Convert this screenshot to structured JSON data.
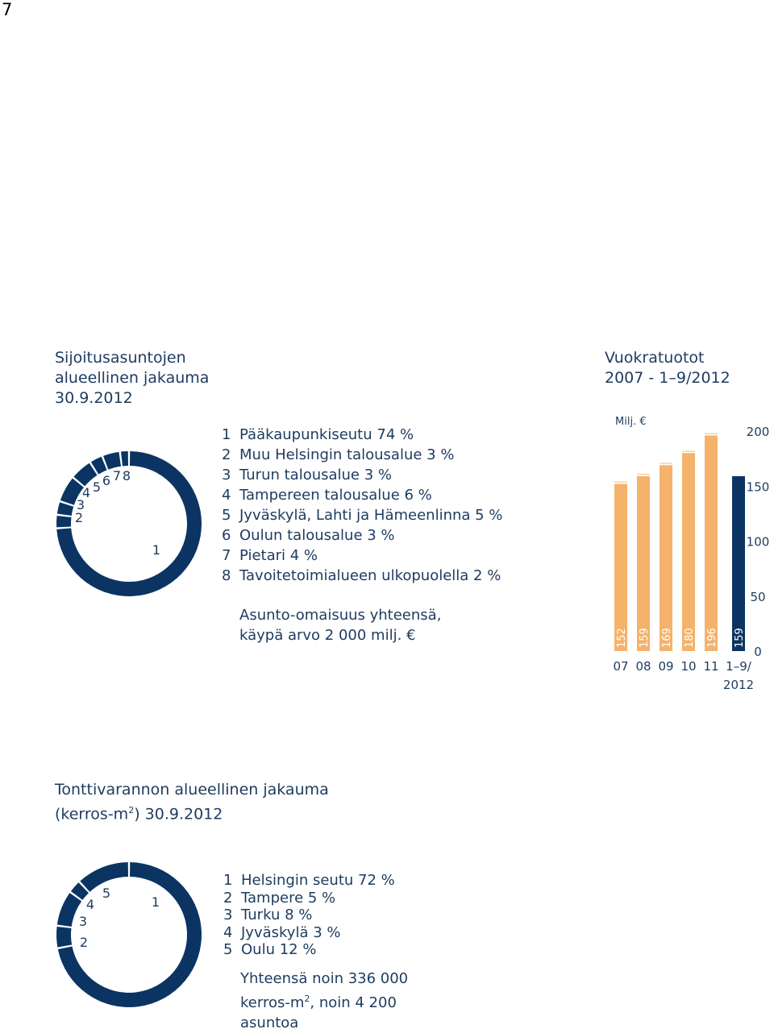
{
  "page_number": "7",
  "donut1": {
    "title_lines": [
      "Sijoitusasuntojen",
      "alueellinen jakauma",
      "30.9.2012"
    ],
    "legend": [
      {
        "num": "1",
        "text": "Pääkaupunkiseutu 74 %"
      },
      {
        "num": "2",
        "text": "Muu Helsingin talousalue 3 %"
      },
      {
        "num": "3",
        "text": "Turun talousalue 3 %"
      },
      {
        "num": "4",
        "text": "Tampereen talousalue 6 %"
      },
      {
        "num": "5",
        "text": "Jyväskylä, Lahti ja Hämeenlinna 5 %"
      },
      {
        "num": "6",
        "text": "Oulun talousalue 3 %"
      },
      {
        "num": "7",
        "text": "Pietari 4 %"
      },
      {
        "num": "8",
        "text": "Tavoitetoimialueen ulkopuolella 2 %"
      }
    ],
    "note_lines": [
      "Asunto-omaisuus yhteensä,",
      "käypä arvo 2 000 milj. €"
    ]
  },
  "bar": {
    "title_lines": [
      "Vuokratuotot",
      "2007 - 1–9/2012"
    ]
  },
  "donut2": {
    "title_line1": "Tonttivarannon alueellinen jakauma",
    "title_line2_pre": "(kerros-m",
    "title_line2_sup": "2",
    "title_line2_post": ") 30.9.2012",
    "legend": [
      {
        "num": "1",
        "text": "Helsingin seutu 72 %"
      },
      {
        "num": "2",
        "text": "Tampere 5 %"
      },
      {
        "num": "3",
        "text": "Turku 8 %"
      },
      {
        "num": "4",
        "text": "Jyväskylä 3 %"
      },
      {
        "num": "5",
        "text": "Oulu 12 %"
      }
    ],
    "note_line1": "Yhteensä noin 336 000",
    "note_line2_pre": "kerros-m",
    "note_line2_sup": "2",
    "note_line2_post": ", noin 4 200",
    "note_line3": "asuntoa"
  },
  "colors": {
    "navy": "#0b3463",
    "orange": "#f5b26b",
    "text": "#1d3b5f"
  },
  "chart_data": [
    {
      "type": "pie",
      "labels": [
        "1",
        "2",
        "3",
        "4",
        "5",
        "6",
        "7",
        "8"
      ],
      "values": [
        74,
        3,
        3,
        6,
        5,
        3,
        4,
        2
      ]
    },
    {
      "type": "bar",
      "categories": [
        "07",
        "08",
        "09",
        "10",
        "11",
        "1–9/\n2012"
      ],
      "values": [
        152,
        159,
        169,
        180,
        196,
        159
      ],
      "value_labels": [
        "152",
        "159",
        "169",
        "180",
        "196",
        "159"
      ],
      "ylabel": "Milj. €",
      "ylim": [
        0,
        200
      ],
      "yticks": [
        "0",
        "50",
        "100",
        "150",
        "200"
      ],
      "highlight_last": true
    },
    {
      "type": "pie",
      "labels": [
        "1",
        "2",
        "3",
        "4",
        "5"
      ],
      "values": [
        72,
        5,
        8,
        3,
        12
      ]
    }
  ]
}
